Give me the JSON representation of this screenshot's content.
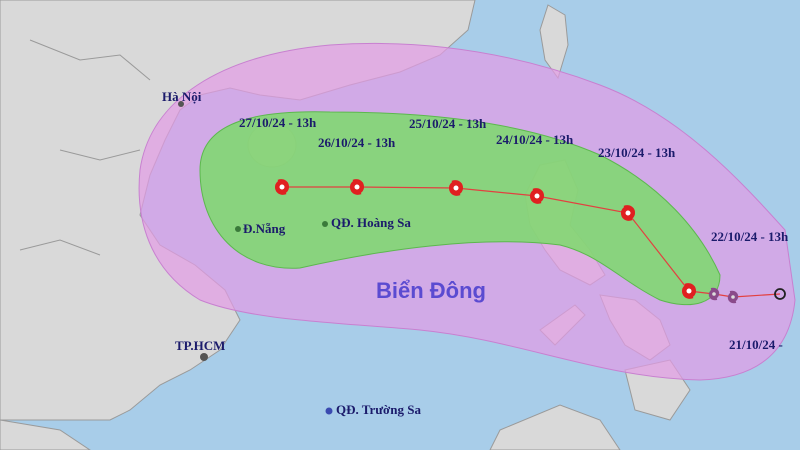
{
  "places": [
    {
      "label": "Hà Nội"
    },
    {
      "label": "Đ.Nẵng"
    },
    {
      "label": "QĐ. Hoàng Sa"
    },
    {
      "label": "TP.HCM"
    },
    {
      "label": "QĐ. Trường Sa"
    }
  ],
  "sea_label": "Biển Đông",
  "forecast_points": [
    {
      "label": "27/10/24 - 13h"
    },
    {
      "label": "26/10/24 - 13h"
    },
    {
      "label": "25/10/24 - 13h"
    },
    {
      "label": "24/10/24 - 13h"
    },
    {
      "label": "23/10/24 - 13h"
    },
    {
      "label": "22/10/24 - 13h"
    },
    {
      "label": "21/10/24 -"
    }
  ]
}
